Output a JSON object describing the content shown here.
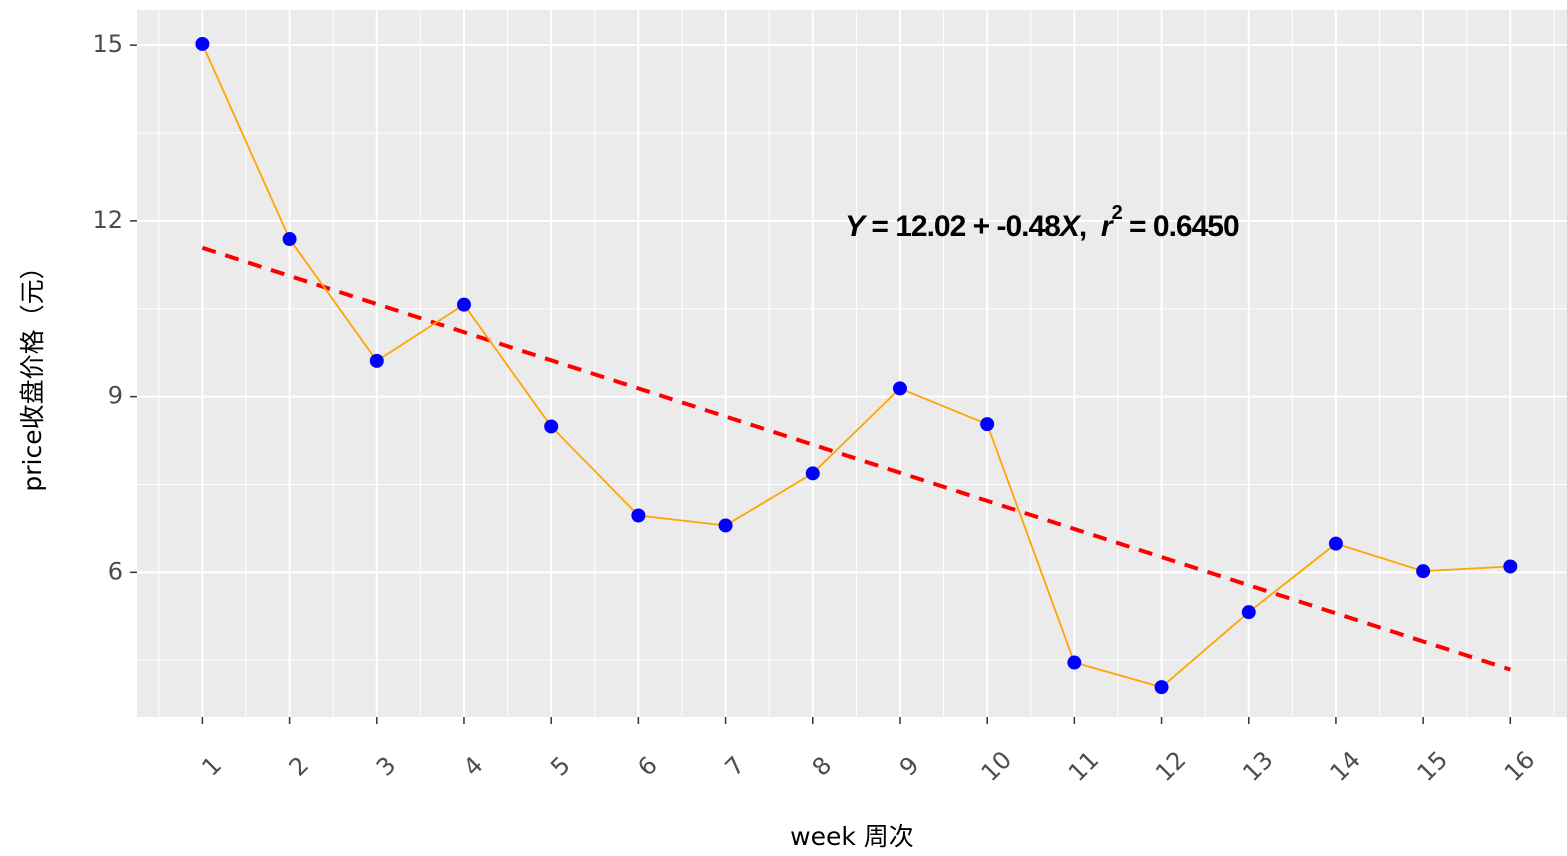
{
  "chart_data": {
    "type": "line",
    "x_label": "week 周次",
    "y_label": "price收盘价格（元）",
    "x": [
      1,
      2,
      3,
      4,
      5,
      6,
      7,
      8,
      9,
      10,
      11,
      12,
      13,
      14,
      15,
      16
    ],
    "series": [
      {
        "color": "#ffa500",
        "marker_color": "#0000ff",
        "values": [
          15.02,
          11.69,
          9.61,
          10.57,
          8.49,
          6.97,
          6.8,
          7.69,
          9.14,
          8.53,
          4.46,
          4.04,
          5.32,
          6.49,
          6.02,
          6.1
        ]
      }
    ],
    "trend": {
      "intercept": 12.02,
      "slope": -0.48,
      "color": "#ff0000"
    },
    "annotation": {
      "lead": "Y",
      "eq": " = 12.02 + -0.48",
      "var": "X",
      "sep": ",  ",
      "r": "r",
      "sup": "2",
      "tail": " = 0.6450"
    },
    "xlim": [
      0.25,
      16.65
    ],
    "ylim": [
      3.53,
      15.6
    ],
    "xticks": [
      1,
      2,
      3,
      4,
      5,
      6,
      7,
      8,
      9,
      10,
      11,
      12,
      13,
      14,
      15,
      16
    ],
    "yticks": [
      6,
      9,
      12,
      15
    ],
    "grid": true,
    "panel_color": "#ebebeb"
  }
}
